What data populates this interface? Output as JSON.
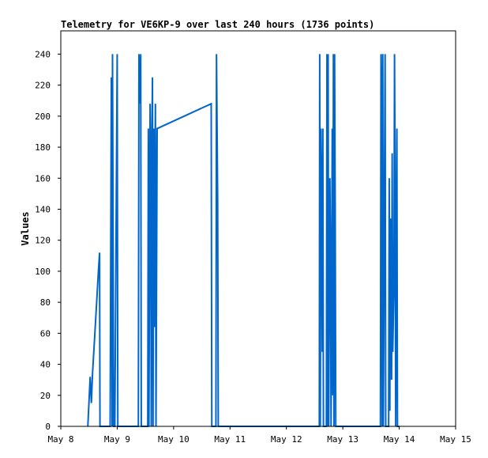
{
  "chart_data": {
    "type": "line",
    "title": "Telemetry for VE6KP-9 over last 240 hours (1736 points)",
    "ylabel": "Values",
    "xlabel": "",
    "xlim": [
      "2024-05-08T00:00",
      "2024-05-15T00:00"
    ],
    "ylim": [
      0,
      255
    ],
    "x_ticks": [
      "May 8",
      "May 9",
      "May 10",
      "May 11",
      "May 12",
      "May 13",
      "May 14",
      "May 15"
    ],
    "y_ticks": [
      0,
      20,
      40,
      60,
      80,
      100,
      120,
      140,
      160,
      180,
      200,
      220,
      240
    ],
    "grid": false,
    "line_color": "#0066cc",
    "series": [
      {
        "points": [
          [
            "2024-05-08T11:30",
            0
          ],
          [
            "2024-05-08T12:30",
            32
          ],
          [
            "2024-05-08T13:00",
            15
          ],
          [
            "2024-05-08T13:30",
            34
          ],
          [
            "2024-05-08T14:30",
            60
          ],
          [
            "2024-05-08T16:00",
            100
          ],
          [
            "2024-05-08T16:30",
            112
          ],
          [
            "2024-05-08T16:40",
            0
          ],
          [
            "2024-05-08T21:00",
            0
          ],
          [
            "2024-05-08T21:30",
            225
          ],
          [
            "2024-05-08T21:50",
            0
          ],
          [
            "2024-05-08T22:00",
            240
          ],
          [
            "2024-05-08T22:15",
            128
          ],
          [
            "2024-05-08T22:30",
            0
          ],
          [
            "2024-05-08T23:00",
            0
          ],
          [
            "2024-05-09T00:00",
            240
          ],
          [
            "2024-05-09T00:15",
            0
          ],
          [
            "2024-05-09T09:00",
            0
          ],
          [
            "2024-05-09T09:15",
            240
          ],
          [
            "2024-05-09T09:30",
            225
          ],
          [
            "2024-05-09T09:45",
            208
          ],
          [
            "2024-05-09T10:00",
            240
          ],
          [
            "2024-05-09T10:15",
            0
          ],
          [
            "2024-05-09T13:00",
            0
          ],
          [
            "2024-05-09T13:15",
            192
          ],
          [
            "2024-05-09T13:30",
            0
          ],
          [
            "2024-05-09T14:00",
            208
          ],
          [
            "2024-05-09T14:15",
            176
          ],
          [
            "2024-05-09T14:30",
            0
          ],
          [
            "2024-05-09T14:45",
            176
          ],
          [
            "2024-05-09T15:00",
            225
          ],
          [
            "2024-05-09T15:15",
            0
          ],
          [
            "2024-05-09T15:30",
            192
          ],
          [
            "2024-05-09T15:45",
            64
          ],
          [
            "2024-05-09T16:00",
            144
          ],
          [
            "2024-05-09T16:15",
            208
          ],
          [
            "2024-05-09T16:30",
            0
          ],
          [
            "2024-05-09T17:00",
            192
          ],
          [
            "2024-05-10T16:00",
            208
          ],
          [
            "2024-05-10T16:15",
            0
          ],
          [
            "2024-05-10T18:00",
            0
          ],
          [
            "2024-05-10T18:15",
            240
          ],
          [
            "2024-05-10T18:30",
            192
          ],
          [
            "2024-05-10T18:45",
            144
          ],
          [
            "2024-05-10T19:00",
            0
          ],
          [
            "2024-05-12T14:00",
            0
          ],
          [
            "2024-05-12T14:10",
            240
          ],
          [
            "2024-05-12T14:25",
            0
          ],
          [
            "2024-05-12T14:40",
            192
          ],
          [
            "2024-05-12T15:00",
            144
          ],
          [
            "2024-05-12T15:15",
            48
          ],
          [
            "2024-05-12T15:30",
            192
          ],
          [
            "2024-05-12T15:45",
            0
          ],
          [
            "2024-05-12T17:00",
            0
          ],
          [
            "2024-05-12T17:15",
            240
          ],
          [
            "2024-05-12T17:30",
            0
          ],
          [
            "2024-05-12T17:45",
            240
          ],
          [
            "2024-05-12T18:00",
            0
          ],
          [
            "2024-05-12T18:30",
            160
          ],
          [
            "2024-05-12T18:45",
            112
          ],
          [
            "2024-05-12T19:00",
            0
          ],
          [
            "2024-05-12T19:15",
            93
          ],
          [
            "2024-05-12T19:30",
            192
          ],
          [
            "2024-05-12T19:45",
            20
          ],
          [
            "2024-05-12T20:00",
            240
          ],
          [
            "2024-05-12T20:15",
            0
          ],
          [
            "2024-05-12T20:30",
            240
          ],
          [
            "2024-05-12T20:45",
            144
          ],
          [
            "2024-05-12T21:00",
            0
          ],
          [
            "2024-05-13T16:00",
            0
          ],
          [
            "2024-05-13T16:15",
            240
          ],
          [
            "2024-05-13T16:30",
            208
          ],
          [
            "2024-05-13T16:45",
            0
          ],
          [
            "2024-05-13T17:00",
            240
          ],
          [
            "2024-05-13T17:15",
            0
          ],
          [
            "2024-05-13T18:00",
            240
          ],
          [
            "2024-05-13T18:15",
            0
          ],
          [
            "2024-05-13T19:30",
            0
          ],
          [
            "2024-05-13T19:45",
            160
          ],
          [
            "2024-05-13T20:00",
            10
          ],
          [
            "2024-05-13T20:15",
            134
          ],
          [
            "2024-05-13T20:30",
            112
          ],
          [
            "2024-05-13T20:45",
            30
          ],
          [
            "2024-05-13T21:00",
            176
          ],
          [
            "2024-05-13T21:15",
            48
          ],
          [
            "2024-05-13T21:30",
            70
          ],
          [
            "2024-05-13T21:45",
            88
          ],
          [
            "2024-05-13T22:00",
            240
          ],
          [
            "2024-05-13T22:15",
            160
          ],
          [
            "2024-05-13T22:30",
            0
          ],
          [
            "2024-05-13T23:00",
            192
          ],
          [
            "2024-05-13T23:15",
            0
          ],
          [
            "2024-05-14T00:00",
            0
          ]
        ]
      }
    ]
  }
}
